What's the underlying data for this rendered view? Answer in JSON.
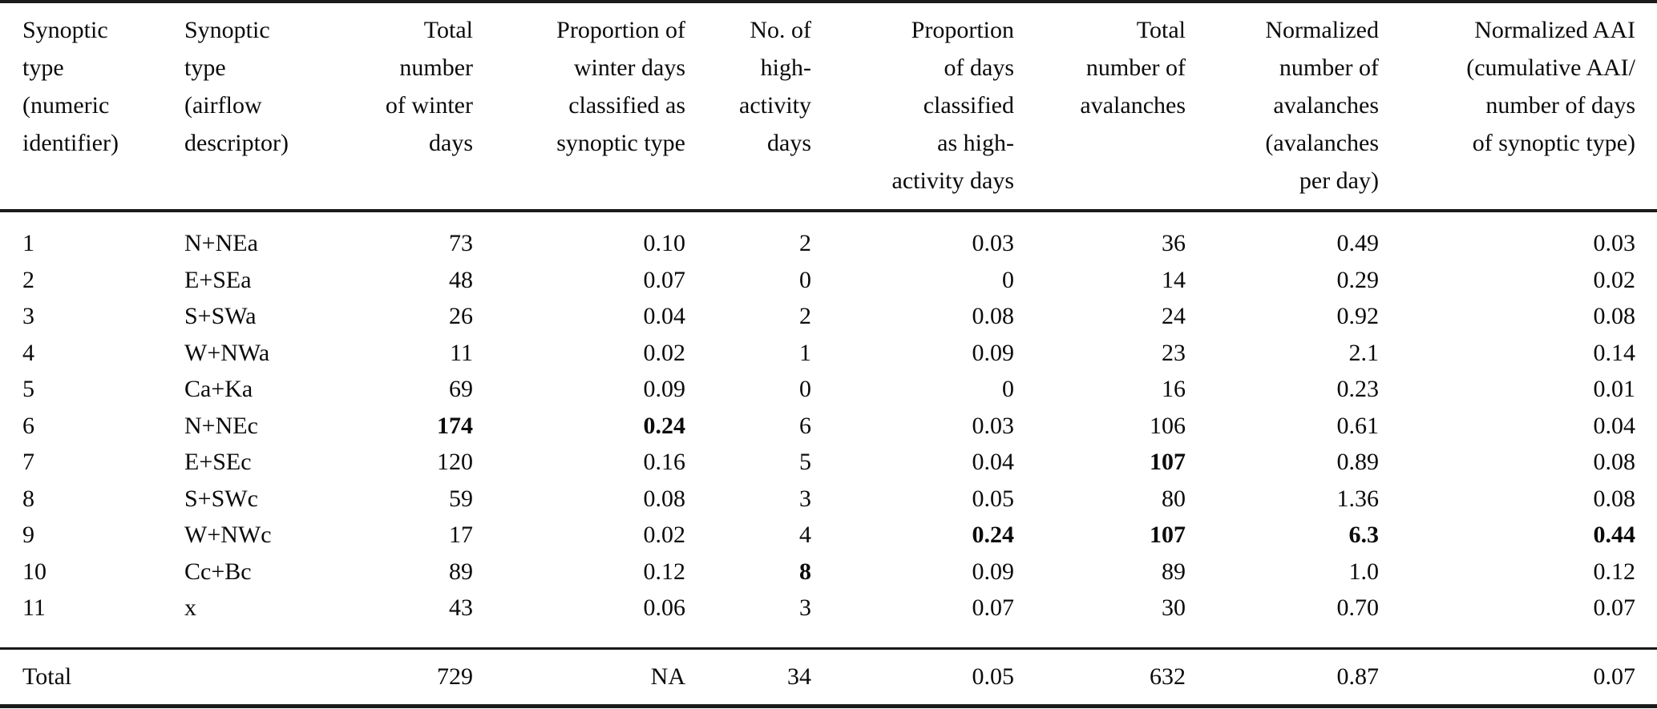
{
  "table": {
    "columns": [
      {
        "label": "Synoptic\ntype\n(numeric\nidentifier)",
        "align": "left"
      },
      {
        "label": "Synoptic\ntype\n(airflow\ndescriptor)",
        "align": "left"
      },
      {
        "label": "Total\nnumber\nof winter\ndays",
        "align": "right"
      },
      {
        "label": "Proportion of\nwinter days\nclassified as\nsynoptic type",
        "align": "right"
      },
      {
        "label": "No. of\nhigh-\nactivity\ndays",
        "align": "right"
      },
      {
        "label": "Proportion\nof days\nclassified\nas high-\nactivity days",
        "align": "right"
      },
      {
        "label": "Total\nnumber of\navalanches",
        "align": "right"
      },
      {
        "label": "Normalized\nnumber of\navalanches\n(avalanches\nper day)",
        "align": "right"
      },
      {
        "label": "Normalized AAI\n(cumulative AAI/\nnumber of days\nof synoptic type)",
        "align": "right"
      }
    ],
    "rows": [
      {
        "cells": [
          "1",
          "N+NEa",
          "73",
          "0.10",
          "2",
          "0.03",
          "36",
          "0.49",
          "0.03"
        ],
        "bold": []
      },
      {
        "cells": [
          "2",
          "E+SEa",
          "48",
          "0.07",
          "0",
          "0",
          "14",
          "0.29",
          "0.02"
        ],
        "bold": []
      },
      {
        "cells": [
          "3",
          "S+SWa",
          "26",
          "0.04",
          "2",
          "0.08",
          "24",
          "0.92",
          "0.08"
        ],
        "bold": []
      },
      {
        "cells": [
          "4",
          "W+NWa",
          "11",
          "0.02",
          "1",
          "0.09",
          "23",
          "2.1",
          "0.14"
        ],
        "bold": []
      },
      {
        "cells": [
          "5",
          "Ca+Ka",
          "69",
          "0.09",
          "0",
          "0",
          "16",
          "0.23",
          "0.01"
        ],
        "bold": []
      },
      {
        "cells": [
          "6",
          "N+NEc",
          "174",
          "0.24",
          "6",
          "0.03",
          "106",
          "0.61",
          "0.04"
        ],
        "bold": [
          2,
          3
        ]
      },
      {
        "cells": [
          "7",
          "E+SEc",
          "120",
          "0.16",
          "5",
          "0.04",
          "107",
          "0.89",
          "0.08"
        ],
        "bold": [
          6
        ]
      },
      {
        "cells": [
          "8",
          "S+SWc",
          "59",
          "0.08",
          "3",
          "0.05",
          "80",
          "1.36",
          "0.08"
        ],
        "bold": []
      },
      {
        "cells": [
          "9",
          "W+NWc",
          "17",
          "0.02",
          "4",
          "0.24",
          "107",
          "6.3",
          "0.44"
        ],
        "bold": [
          5,
          6,
          7,
          8
        ]
      },
      {
        "cells": [
          "10",
          "Cc+Bc",
          "89",
          "0.12",
          "8",
          "0.09",
          "89",
          "1.0",
          "0.12"
        ],
        "bold": [
          4
        ]
      },
      {
        "cells": [
          "11",
          "x",
          "43",
          "0.06",
          "3",
          "0.07",
          "30",
          "0.70",
          "0.07"
        ],
        "bold": []
      }
    ],
    "total_row": {
      "cells": [
        "Total",
        "",
        "729",
        "NA",
        "34",
        "0.05",
        "632",
        "0.87",
        "0.07"
      ],
      "bold": []
    }
  }
}
